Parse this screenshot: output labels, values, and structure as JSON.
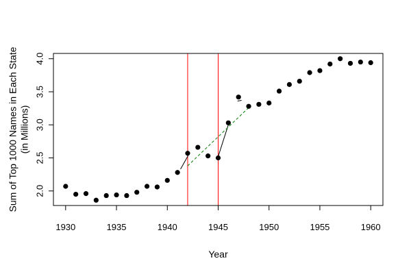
{
  "chart_data": {
    "type": "scatter",
    "title": "",
    "xlabel": "Year",
    "ylabel": [
      "Sum of Top 1000 Names in Each State",
      "(in Millions)"
    ],
    "xlim": [
      1928.8,
      1961.2
    ],
    "ylim": [
      1.78,
      4.08
    ],
    "x_ticks": [
      1930,
      1935,
      1940,
      1945,
      1950,
      1955,
      1960
    ],
    "y_ticks": [
      2.0,
      2.5,
      3.0,
      3.5,
      4.0
    ],
    "y_tick_labels": [
      "2.0",
      "2.5",
      "3.0",
      "3.5",
      "4.0"
    ],
    "grid": false,
    "points": {
      "x": [
        1930,
        1931,
        1932,
        1933,
        1934,
        1935,
        1936,
        1937,
        1938,
        1939,
        1940,
        1941,
        1942,
        1943,
        1944,
        1945,
        1946,
        1947,
        1948,
        1949,
        1950,
        1951,
        1952,
        1953,
        1954,
        1955,
        1956,
        1957,
        1958,
        1959,
        1960
      ],
      "y": [
        2.07,
        1.95,
        1.96,
        1.86,
        1.93,
        1.94,
        1.93,
        1.98,
        2.07,
        2.06,
        2.16,
        2.28,
        2.57,
        2.66,
        2.53,
        2.5,
        3.03,
        3.42,
        3.28,
        3.31,
        3.33,
        3.51,
        3.61,
        3.66,
        3.79,
        3.82,
        3.92,
        4.0,
        3.93,
        3.95,
        3.94
      ],
      "color": "#000000"
    },
    "vertical_lines": {
      "x": [
        1942,
        1945
      ],
      "color": "#ff0000"
    },
    "segments": [
      {
        "style": "solid",
        "color": "#000000",
        "points": [
          [
            1941.3,
            2.33
          ],
          [
            1942.1,
            2.55
          ]
        ]
      },
      {
        "style": "solid",
        "color": "#000000",
        "points": [
          [
            1945.0,
            2.52
          ],
          [
            1946.1,
            3.05
          ]
        ]
      },
      {
        "style": "solid",
        "color": "#000000",
        "points": [
          [
            1946.9,
            3.36
          ],
          [
            1947.3,
            3.37
          ]
        ]
      },
      {
        "style": "dashed",
        "color": "#007f00",
        "points": [
          [
            1942.0,
            2.38
          ],
          [
            1948.0,
            3.26
          ]
        ]
      }
    ]
  }
}
